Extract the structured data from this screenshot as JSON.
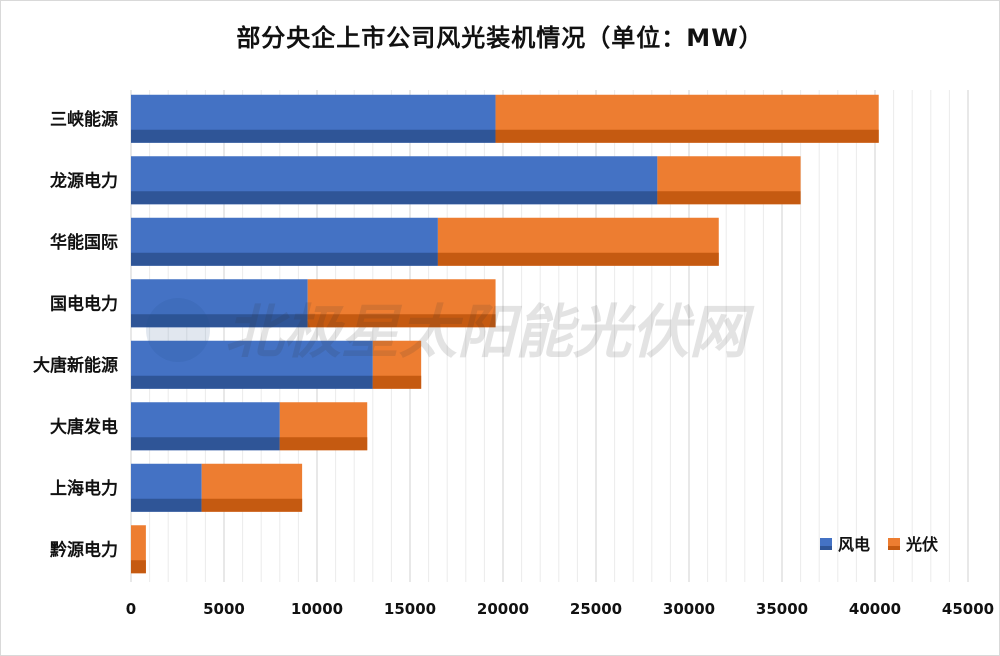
{
  "chart_data": {
    "type": "bar",
    "orientation": "horizontal",
    "stacked": true,
    "title": "部分央企上市公司风光装机情况（单位：MW）",
    "categories": [
      "三峡能源",
      "龙源电力",
      "华能国际",
      "国电电力",
      "大唐新能源",
      "大唐发电",
      "上海电力",
      "黔源电力"
    ],
    "series": [
      {
        "name": "风电",
        "color": "#4472c4",
        "values": [
          19600,
          28300,
          16500,
          9500,
          13000,
          8000,
          3800,
          0
        ]
      },
      {
        "name": "光伏",
        "color": "#ed7d31",
        "values": [
          20600,
          7700,
          15100,
          10100,
          2600,
          4700,
          5400,
          800
        ]
      }
    ],
    "xlim": [
      0,
      45000
    ],
    "xticks": [
      "0",
      "5000",
      "10000",
      "15000",
      "20000",
      "25000",
      "30000",
      "35000",
      "40000",
      "45000"
    ],
    "grid": true,
    "legend_position": "bottom-right"
  },
  "watermark": {
    "text": "北极星太阳能光伏网"
  }
}
